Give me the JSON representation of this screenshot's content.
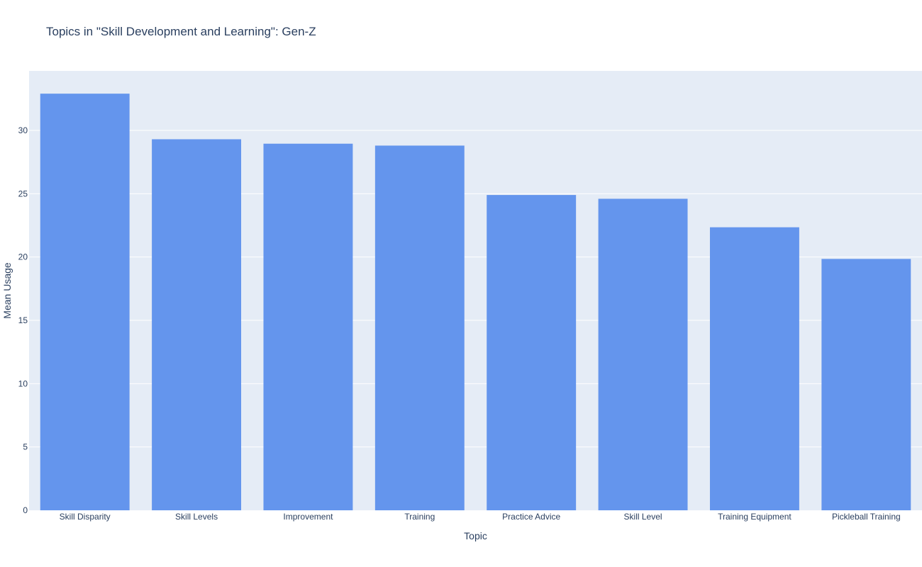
{
  "chart_data": {
    "type": "bar",
    "title": "Topics in \"Skill Development and Learning\": Gen-Z",
    "xlabel": "Topic",
    "ylabel": "Mean Usage",
    "categories": [
      "Skill Disparity",
      "Skill Levels",
      "Improvement",
      "Training",
      "Practice Advice",
      "Skill Level",
      "Training Equipment",
      "Pickleball Training"
    ],
    "values": [
      32.9,
      29.3,
      28.95,
      28.8,
      24.9,
      24.6,
      22.35,
      19.85
    ],
    "ylim": [
      0,
      34.7
    ],
    "yticks": [
      0,
      5,
      10,
      15,
      20,
      25,
      30
    ],
    "grid": true,
    "legend": "none",
    "colors": {
      "bar": "#6495ED",
      "plot_bg": "#E5ECF6",
      "paper_bg": "#FFFFFF",
      "grid": "#FFFFFF",
      "text": "#2A3F5F"
    }
  }
}
